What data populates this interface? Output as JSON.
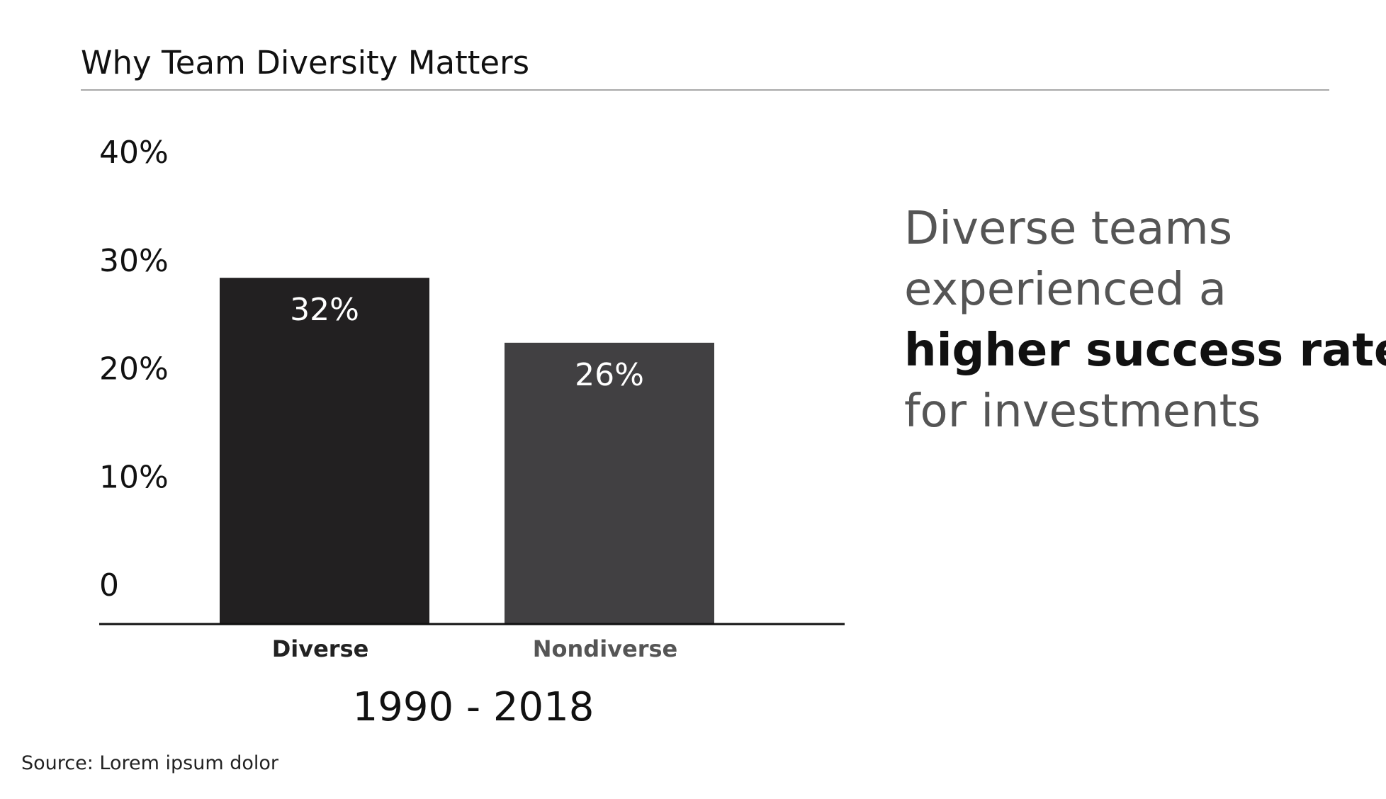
{
  "chart_data": {
    "type": "bar",
    "title": "Why Team Diversity Matters",
    "categories": [
      "Diverse",
      "Nondiverse"
    ],
    "values": [
      32,
      26
    ],
    "data_labels": [
      "32%",
      "26%"
    ],
    "bar_colors": [
      "#222021",
      "#414042"
    ],
    "category_label_colors": [
      "#222222",
      "#555555"
    ],
    "yticks": [
      0,
      10,
      20,
      30,
      40
    ],
    "ytick_labels": [
      "0",
      "10%",
      "20%",
      "30%",
      "40%"
    ],
    "ylim": [
      0,
      40
    ],
    "xlabel": "1990 - 2018",
    "ylabel": "",
    "grid": false
  },
  "callout": {
    "line1": "Diverse teams",
    "line2": "experienced a",
    "line3_emphasis": "higher success rate",
    "line4": "for investments"
  },
  "source": "Source: Lorem ipsum dolor",
  "colors": {
    "text_primary": "#111111",
    "text_secondary": "#555555",
    "rule": "#a8a8a8"
  }
}
